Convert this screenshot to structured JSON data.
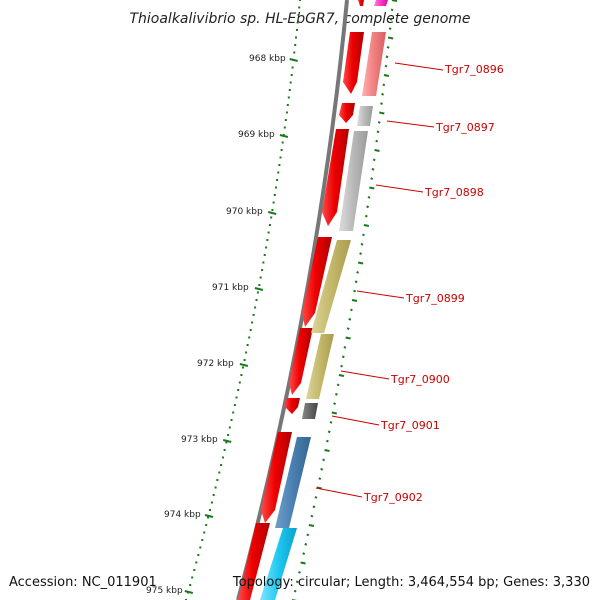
{
  "title": "Thioalkalivibrio sp. HL-EbGR7, complete genome",
  "footer": {
    "accession": "Accession: NC_011901",
    "summary": "Topology: circular; Length: 3,464,554 bp; Genes: 3,330"
  },
  "scale_labels": [
    "968 kbp",
    "969 kbp",
    "970 kbp",
    "971 kbp",
    "972 kbp",
    "973 kbp",
    "974 kbp",
    "975 kbp"
  ],
  "gene_labels": [
    "Tgr7_0896",
    "Tgr7_0897",
    "Tgr7_0898",
    "Tgr7_0899",
    "Tgr7_0900",
    "Tgr7_0901",
    "Tgr7_0902"
  ],
  "colors": {
    "backbone": "#777777",
    "cds": "#ee0000",
    "tick": "#1a7a1a",
    "label": "#cc0000",
    "feature_pink": "#f08080",
    "feature_gray": "#b8b8b8",
    "feature_olive": "#c4b86a",
    "feature_darkgray": "#666666",
    "feature_steelblue": "#4a7fb0",
    "feature_cyan": "#1ec8f0",
    "feature_magenta": "#ff33cc"
  }
}
